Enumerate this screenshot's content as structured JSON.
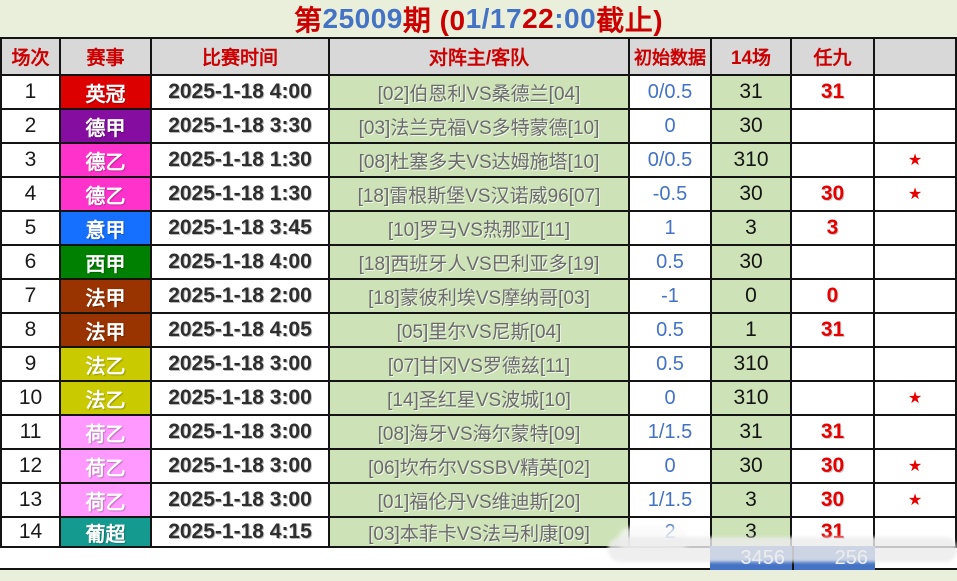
{
  "title": {
    "full_text": "第25009期 (01/17 22:00 截止)",
    "parts": [
      {
        "text": "第",
        "color": "#cc0000"
      },
      {
        "text": "25009",
        "color": "#4472c4"
      },
      {
        "text": "期 (0",
        "color": "#cc0000"
      },
      {
        "text": "1/17 ",
        "color": "#4472c4"
      },
      {
        "text": "22",
        "color": "#cc0000"
      },
      {
        "text": ":00",
        "color": "#4472c4"
      },
      {
        "text": " 截止)",
        "color": "#cc0000"
      }
    ]
  },
  "colors": {
    "header_bg": "#d8d8d8",
    "header_text": "#cc0000",
    "match_cell_bg": "#cde2b6",
    "odds_text": "#4472c4",
    "ren9_text": "#e60000",
    "sum_bar_bg": "#4472c4",
    "page_bg": "#e9efdb"
  },
  "icons": {
    "star_glyph": "★"
  },
  "table": {
    "headers": [
      "场次",
      "赛事",
      "比赛时间",
      "对阵主/客队",
      "初始数据",
      "14场",
      "任九",
      ""
    ],
    "rows": [
      {
        "no": "1",
        "league": "英冠",
        "league_color": "#dc0000",
        "time": "2025-1-18 4:00",
        "match": "[02]伯恩利VS桑德兰[04]",
        "odds": "0/0.5",
        "c14": "31",
        "r9": "31",
        "star": false
      },
      {
        "no": "2",
        "league": "德甲",
        "league_color": "#850da0",
        "time": "2025-1-18 3:30",
        "match": "[03]法兰克福VS多特蒙德[10]",
        "odds": "0",
        "c14": "30",
        "r9": "",
        "star": false
      },
      {
        "no": "3",
        "league": "德乙",
        "league_color": "#ff33cc",
        "time": "2025-1-18 1:30",
        "match": "[08]杜塞多夫VS达姆施塔[10]",
        "odds": "0/0.5",
        "c14": "310",
        "r9": "",
        "star": true
      },
      {
        "no": "4",
        "league": "德乙",
        "league_color": "#ff33cc",
        "time": "2025-1-18 1:30",
        "match": "[18]雷根斯堡VS汉诺威96[07]",
        "odds": "-0.5",
        "c14": "30",
        "r9": "30",
        "star": true
      },
      {
        "no": "5",
        "league": "意甲",
        "league_color": "#1670ff",
        "time": "2025-1-18 3:45",
        "match": "[10]罗马VS热那亚[11]",
        "odds": "1",
        "c14": "3",
        "r9": "3",
        "star": false
      },
      {
        "no": "6",
        "league": "西甲",
        "league_color": "#008000",
        "time": "2025-1-18 4:00",
        "match": "[18]西班牙人VS巴利亚多[19]",
        "odds": "0.5",
        "c14": "30",
        "r9": "",
        "star": false
      },
      {
        "no": "7",
        "league": "法甲",
        "league_color": "#993300",
        "time": "2025-1-18 2:00",
        "match": "[18]蒙彼利埃VS摩纳哥[03]",
        "odds": "-1",
        "c14": "0",
        "r9": "0",
        "star": false
      },
      {
        "no": "8",
        "league": "法甲",
        "league_color": "#993300",
        "time": "2025-1-18 4:05",
        "match": "[05]里尔VS尼斯[04]",
        "odds": "0.5",
        "c14": "1",
        "r9": "31",
        "star": false
      },
      {
        "no": "9",
        "league": "法乙",
        "league_color": "#caca00",
        "time": "2025-1-18 3:00",
        "match": "[07]甘冈VS罗德兹[11]",
        "odds": "0.5",
        "c14": "310",
        "r9": "",
        "star": false
      },
      {
        "no": "10",
        "league": "法乙",
        "league_color": "#caca00",
        "time": "2025-1-18 3:00",
        "match": "[14]圣红星VS波城[10]",
        "odds": "0",
        "c14": "310",
        "r9": "",
        "star": true
      },
      {
        "no": "11",
        "league": "荷乙",
        "league_color": "#ff99ff",
        "time": "2025-1-18 3:00",
        "match": "[08]海牙VS海尔蒙特[09]",
        "odds": "1/1.5",
        "c14": "31",
        "r9": "31",
        "star": false
      },
      {
        "no": "12",
        "league": "荷乙",
        "league_color": "#ff99ff",
        "time": "2025-1-18 3:00",
        "match": "[06]坎布尔VSSBV精英[02]",
        "odds": "0",
        "c14": "30",
        "r9": "30",
        "star": true
      },
      {
        "no": "13",
        "league": "荷乙",
        "league_color": "#ff99ff",
        "time": "2025-1-18 3:00",
        "match": "[01]福伦丹VS维迪斯[20]",
        "odds": "1/1.5",
        "c14": "3",
        "r9": "30",
        "star": true
      },
      {
        "no": "14",
        "league": "葡超",
        "league_color": "#149a8e",
        "time": "2025-1-18 4:15",
        "match": "[03]本菲卡VS法马利康[09]",
        "odds": "2",
        "c14": "3",
        "r9": "31",
        "star": false
      }
    ]
  },
  "footer": {
    "sum_14": "3456",
    "sum_r9": "256"
  }
}
